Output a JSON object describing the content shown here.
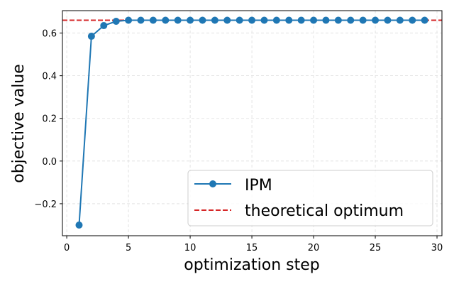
{
  "chart_data": {
    "type": "line",
    "title": "",
    "xlabel": "optimization step",
    "ylabel": "objective value",
    "xlim": [
      -0.35,
      30.4
    ],
    "ylim": [
      -0.35,
      0.705
    ],
    "xticks": [
      0,
      5,
      10,
      15,
      20,
      25,
      30
    ],
    "yticks": [
      -0.2,
      0.0,
      0.2,
      0.4,
      0.6
    ],
    "xtick_labels": [
      "0",
      "5",
      "10",
      "15",
      "20",
      "25",
      "30"
    ],
    "ytick_labels": [
      "−0.2",
      "0.0",
      "0.2",
      "0.4",
      "0.6"
    ],
    "grid": true,
    "legend_position": "lower right",
    "series": [
      {
        "name": "IPM",
        "color": "#1f77b4",
        "style": "solid",
        "marker": "circle",
        "x": [
          1,
          2,
          3,
          4,
          5,
          6,
          7,
          8,
          9,
          10,
          11,
          12,
          13,
          14,
          15,
          16,
          17,
          18,
          19,
          20,
          21,
          22,
          23,
          24,
          25,
          26,
          27,
          28,
          29
        ],
        "values": [
          -0.3,
          0.585,
          0.635,
          0.655,
          0.66,
          0.66,
          0.66,
          0.66,
          0.66,
          0.66,
          0.66,
          0.66,
          0.66,
          0.66,
          0.66,
          0.66,
          0.66,
          0.66,
          0.66,
          0.66,
          0.66,
          0.66,
          0.66,
          0.66,
          0.66,
          0.66,
          0.66,
          0.66,
          0.66
        ]
      },
      {
        "name": "theoretical optimum",
        "color": "#d62728",
        "style": "dashed",
        "type": "hline",
        "value": 0.66
      }
    ],
    "legend": [
      "IPM",
      "theoretical optimum"
    ]
  }
}
